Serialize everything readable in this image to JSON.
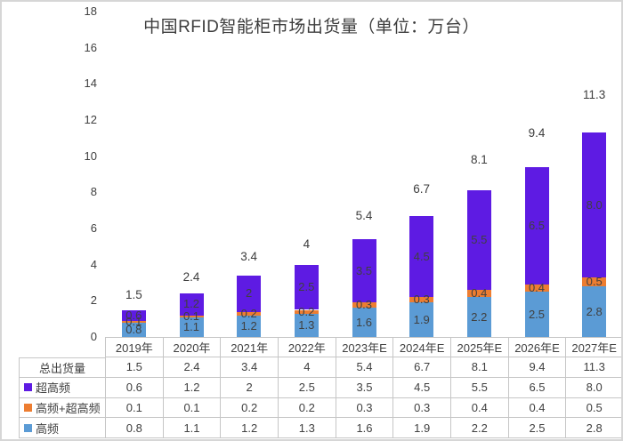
{
  "page": {
    "title": "中国RFID智能柜市场出货量（单位：万台）"
  },
  "colors": {
    "uhf_purple": "#5E1BE3",
    "hf_uhf_orange": "#ED7D31",
    "hf_blue": "#5B9BD5",
    "text": "#404040",
    "table_border": "#c6c6c6"
  },
  "chart_data": {
    "type": "bar",
    "stacked": true,
    "title": "中国RFID智能柜市场出货量（单位：万台）",
    "xlabel": "",
    "ylabel": "",
    "ylim": [
      0,
      18
    ],
    "yticks": [
      0,
      2,
      4,
      6,
      8,
      10,
      12,
      14,
      16,
      18
    ],
    "gridlines": false,
    "legend_position": "table-below",
    "categories": [
      "2019年",
      "2020年",
      "2021年",
      "2022年",
      "2023年E",
      "2024年E",
      "2025年E",
      "2026年E",
      "2027年E"
    ],
    "series": [
      {
        "name": "高频",
        "color": "#5B9BD5",
        "values": [
          0.8,
          1.1,
          1.2,
          1.3,
          1.6,
          1.9,
          2.2,
          2.5,
          2.8
        ],
        "labels": [
          "0.8",
          "1.1",
          "1.2",
          "1.3",
          "1.6",
          "1.9",
          "2.2",
          "2.5",
          "2.8"
        ]
      },
      {
        "name": "高频+超高频",
        "color": "#ED7D31",
        "values": [
          0.1,
          0.1,
          0.2,
          0.2,
          0.3,
          0.3,
          0.4,
          0.4,
          0.5
        ],
        "labels": [
          "0.1",
          "0.1",
          "0.2",
          "0.2",
          "0.3",
          "0.3",
          "0.4",
          "0.4",
          "0.5"
        ]
      },
      {
        "name": "超高频",
        "color": "#5E1BE3",
        "values": [
          0.6,
          1.2,
          2.0,
          2.5,
          3.5,
          4.5,
          5.5,
          6.5,
          8.0
        ],
        "labels": [
          "0.6",
          "1.2",
          "2",
          "2.5",
          "3.5",
          "4.5",
          "5.5",
          "6.5",
          "8.0"
        ]
      }
    ],
    "totals": {
      "name": "总出货量",
      "values": [
        1.5,
        2.4,
        3.4,
        4.0,
        5.4,
        6.7,
        8.1,
        9.4,
        11.3
      ],
      "labels": [
        "1.5",
        "2.4",
        "3.4",
        "4",
        "5.4",
        "6.7",
        "8.1",
        "9.4",
        "11.3"
      ]
    }
  },
  "table": {
    "header": [
      "2019年",
      "2020年",
      "2021年",
      "2022年",
      "2023年E",
      "2024年E",
      "2025年E",
      "2026年E",
      "2027年E"
    ],
    "rows": [
      {
        "label": "总出货量",
        "swatch": null,
        "values": [
          "1.5",
          "2.4",
          "3.4",
          "4",
          "5.4",
          "6.7",
          "8.1",
          "9.4",
          "11.3"
        ]
      },
      {
        "label": "超高频",
        "swatch": "#5E1BE3",
        "values": [
          "0.6",
          "1.2",
          "2",
          "2.5",
          "3.5",
          "4.5",
          "5.5",
          "6.5",
          "8.0"
        ]
      },
      {
        "label": "高频+超高频",
        "swatch": "#ED7D31",
        "values": [
          "0.1",
          "0.1",
          "0.2",
          "0.2",
          "0.3",
          "0.3",
          "0.4",
          "0.4",
          "0.5"
        ]
      },
      {
        "label": "高频",
        "swatch": "#5B9BD5",
        "values": [
          "0.8",
          "1.1",
          "1.2",
          "1.3",
          "1.6",
          "1.9",
          "2.2",
          "2.5",
          "2.8"
        ]
      }
    ]
  }
}
